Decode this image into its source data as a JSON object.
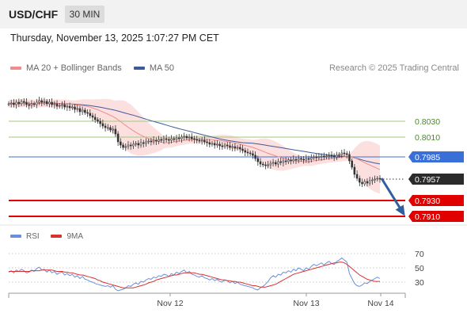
{
  "header": {
    "symbol": "USD/CHF",
    "interval": "30 MIN",
    "datetime": "Thursday, November 13, 2025 1:07:27 PM CET"
  },
  "legend": {
    "ma20": "MA 20 + Bollinger Bands",
    "ma50": "MA 50",
    "copyright": "Research © 2025 Trading Central"
  },
  "rsi_legend": {
    "rsi": "RSI",
    "ma": "9MA"
  },
  "colors": {
    "ma20": "#f08c8c",
    "ma50": "#3d5b99",
    "bands_fill": "#fbd6d6",
    "resistance": "#9ccb7a",
    "pivot": "#3b6fd8",
    "support": "#e00000",
    "price_box": "#2b2b2b",
    "rsi": "#6b8fd6",
    "rsi_ma": "#d93030",
    "arrow": "#2f5f9e"
  },
  "chart_data": [
    {
      "type": "candlestick",
      "title": "USD/CHF",
      "ylim": [
        0.79,
        0.808
      ],
      "x_ticks": [
        "Nov 12",
        "Nov 13",
        "Nov 14"
      ],
      "levels": [
        {
          "name": "resistance-2",
          "value": 0.803,
          "label": "0.8030",
          "kind": "resistance"
        },
        {
          "name": "resistance-1",
          "value": 0.801,
          "label": "0.8010",
          "kind": "resistance"
        },
        {
          "name": "pivot",
          "value": 0.7985,
          "label": "0.7985",
          "kind": "pivot"
        },
        {
          "name": "last-price",
          "value": 0.7957,
          "label": "0.7957",
          "kind": "price"
        },
        {
          "name": "support-1",
          "value": 0.793,
          "label": "0.7930",
          "kind": "support"
        },
        {
          "name": "support-2",
          "value": 0.791,
          "label": "0.7910",
          "kind": "support"
        }
      ],
      "projection": {
        "from": 0.7958,
        "to": 0.791
      },
      "close": [
        0.8052,
        0.8053,
        0.8051,
        0.8054,
        0.8052,
        0.8055,
        0.8054,
        0.8051,
        0.805,
        0.8052,
        0.8051,
        0.8054,
        0.8056,
        0.8054,
        0.8055,
        0.8052,
        0.8054,
        0.8051,
        0.8052,
        0.8049,
        0.805,
        0.8051,
        0.8048,
        0.8049,
        0.8047,
        0.8048,
        0.8045,
        0.8046,
        0.8042,
        0.8044,
        0.8041,
        0.804,
        0.8037,
        0.8035,
        0.8032,
        0.803,
        0.8027,
        0.8024,
        0.8022,
        0.8022,
        0.8019,
        0.802,
        0.8014,
        0.8004,
        0.8,
        0.7997,
        0.7998,
        0.8,
        0.7999,
        0.8001,
        0.8002,
        0.8,
        0.8003,
        0.8002,
        0.8004,
        0.8005,
        0.8004,
        0.8006,
        0.8005,
        0.8007,
        0.8006,
        0.8008,
        0.8007,
        0.8006,
        0.8008,
        0.8007,
        0.8009,
        0.8008,
        0.801,
        0.8011,
        0.8009,
        0.801,
        0.8008,
        0.8007,
        0.8006,
        0.8005,
        0.8006,
        0.8004,
        0.8003,
        0.8001,
        0.8002,
        0.8,
        0.8001,
        0.7999,
        0.7998,
        0.8,
        0.7999,
        0.7997,
        0.7998,
        0.7996,
        0.7997,
        0.7995,
        0.7993,
        0.7991,
        0.799,
        0.7989,
        0.7987,
        0.7983,
        0.7979,
        0.7976,
        0.7975,
        0.7974,
        0.7975,
        0.7977,
        0.7978,
        0.7976,
        0.7979,
        0.7978,
        0.798,
        0.7979,
        0.7981,
        0.798,
        0.7982,
        0.7981,
        0.7983,
        0.7982,
        0.7981,
        0.7983,
        0.7982,
        0.7984,
        0.7985,
        0.7984,
        0.7985,
        0.7986,
        0.7985,
        0.7986,
        0.7987,
        0.7986,
        0.7985,
        0.7987,
        0.7988,
        0.799,
        0.7989,
        0.7988,
        0.798,
        0.7972,
        0.7963,
        0.7958,
        0.7953,
        0.7951,
        0.7954,
        0.7952,
        0.7955,
        0.7956,
        0.7957,
        0.7958,
        0.7957
      ]
    },
    {
      "type": "line",
      "title": "RSI",
      "ylim": [
        0,
        100
      ],
      "y_ticks": [
        30,
        50,
        70
      ],
      "series": [
        {
          "name": "RSI",
          "values": [
            44,
            46,
            43,
            47,
            45,
            48,
            46,
            43,
            44,
            47,
            45,
            49,
            51,
            47,
            48,
            44,
            47,
            43,
            45,
            41,
            43,
            44,
            40,
            42,
            39,
            41,
            37,
            39,
            35,
            38,
            34,
            33,
            31,
            30,
            28,
            27,
            26,
            25,
            24,
            25,
            23,
            25,
            20,
            18,
            19,
            20,
            22,
            25,
            24,
            27,
            29,
            27,
            31,
            30,
            33,
            35,
            34,
            37,
            36,
            39,
            38,
            41,
            40,
            38,
            42,
            40,
            44,
            42,
            45,
            47,
            43,
            45,
            41,
            40,
            38,
            37,
            39,
            36,
            35,
            33,
            35,
            32,
            34,
            31,
            30,
            33,
            32,
            29,
            31,
            28,
            30,
            27,
            26,
            25,
            24,
            23,
            22,
            20,
            19,
            22,
            24,
            27,
            31,
            36,
            39,
            37,
            41,
            40,
            44,
            43,
            46,
            44,
            48,
            46,
            50,
            48,
            46,
            50,
            48,
            52,
            55,
            53,
            55,
            57,
            54,
            57,
            59,
            56,
            55,
            59,
            61,
            64,
            61,
            58,
            42,
            35,
            28,
            25,
            24,
            26,
            29,
            28,
            31,
            33,
            35,
            37,
            35
          ]
        },
        {
          "name": "9MA",
          "values": [
            45,
            45,
            45,
            45,
            45,
            45,
            45,
            45,
            45,
            46,
            46,
            46,
            46,
            47,
            47,
            47,
            47,
            47,
            46,
            45,
            45,
            45,
            44,
            44,
            43,
            43,
            42,
            41,
            40,
            40,
            39,
            38,
            37,
            36,
            35,
            33,
            32,
            30,
            29,
            28,
            27,
            26,
            25,
            24,
            23,
            22,
            22,
            22,
            22,
            22,
            23,
            24,
            25,
            26,
            27,
            29,
            30,
            31,
            33,
            34,
            35,
            36,
            37,
            38,
            39,
            40,
            40,
            41,
            42,
            43,
            43,
            43,
            43,
            43,
            42,
            41,
            41,
            40,
            39,
            38,
            37,
            36,
            35,
            34,
            33,
            33,
            32,
            32,
            31,
            31,
            30,
            30,
            29,
            28,
            27,
            26,
            25,
            25,
            24,
            23,
            23,
            23,
            24,
            25,
            26,
            27,
            29,
            31,
            33,
            35,
            37,
            39,
            41,
            42,
            43,
            44,
            45,
            46,
            47,
            48,
            49,
            50,
            51,
            52,
            53,
            54,
            55,
            56,
            57,
            57,
            58,
            58,
            57,
            55,
            52,
            49,
            46,
            43,
            40,
            38,
            36,
            34,
            33,
            32,
            31,
            31,
            31
          ]
        }
      ]
    }
  ]
}
